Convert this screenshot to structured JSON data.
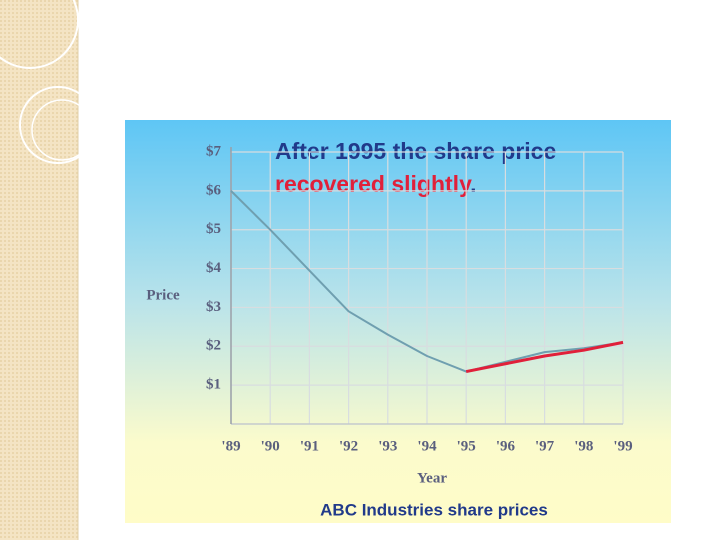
{
  "chart_data": {
    "type": "line",
    "title": {
      "line1": "After 1995 the share price",
      "line2": "recovered slightly",
      "line2_end": "."
    },
    "x_label": "Year",
    "y_label": "Price",
    "caption": "ABC Industries share prices",
    "categories": [
      "'89",
      "'90",
      "'91",
      "'92",
      "'93",
      "'94",
      "'95",
      "'96",
      "'97",
      "'98",
      "'99"
    ],
    "series": [
      {
        "color": "#6f9fb0",
        "values": [
          6.0,
          5.0,
          3.95,
          2.9,
          2.3,
          1.75,
          1.35,
          1.6,
          1.85,
          1.95,
          2.1
        ]
      },
      {
        "color": "#e0203a",
        "values": [
          null,
          null,
          null,
          null,
          null,
          null,
          1.35,
          1.55,
          1.75,
          1.9,
          2.1
        ]
      }
    ],
    "ylim": [
      0,
      7
    ],
    "yticks": [
      {
        "value": 1,
        "label": "$1"
      },
      {
        "value": 2,
        "label": "$2"
      },
      {
        "value": 3,
        "label": "$3"
      },
      {
        "value": 4,
        "label": "$4"
      },
      {
        "value": 5,
        "label": "$5"
      },
      {
        "value": 6,
        "label": "$6"
      },
      {
        "value": 7,
        "label": "$7"
      }
    ],
    "grid": true
  }
}
